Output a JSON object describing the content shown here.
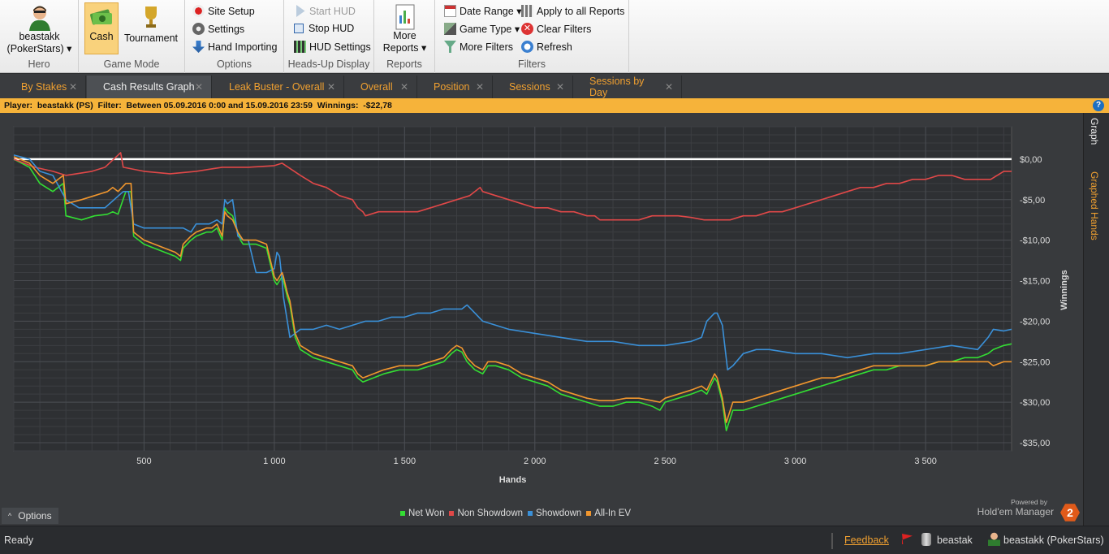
{
  "ribbon": {
    "hero": {
      "name": "beastakk",
      "site": "(PokerStars)",
      "label": "Hero"
    },
    "game_mode": {
      "cash": "Cash",
      "tournament": "Tournament",
      "label": "Game Mode"
    },
    "options": {
      "site_setup": "Site Setup",
      "settings": "Settings",
      "hand_importing": "Hand Importing",
      "label": "Options"
    },
    "hud": {
      "start": "Start HUD",
      "stop": "Stop HUD",
      "settings": "HUD Settings",
      "label": "Heads-Up Display"
    },
    "reports": {
      "more1": "More",
      "more2": "Reports",
      "label": "Reports"
    },
    "filters": {
      "date_range": "Date Range",
      "game_type": "Game Type",
      "more_filters": "More Filters",
      "apply_all": "Apply to all Reports",
      "clear": "Clear Filters",
      "refresh": "Refresh",
      "label": "Filters"
    }
  },
  "tabs": [
    {
      "label": "By Stakes"
    },
    {
      "label": "Cash Results Graph"
    },
    {
      "label": "Leak Buster - Overall"
    },
    {
      "label": "Overall"
    },
    {
      "label": "Position"
    },
    {
      "label": "Sessions"
    },
    {
      "label": "Sessions by Day"
    }
  ],
  "filterbar": {
    "text": "Player:  beastakk (PS)  Filter:  Between 05.09.2016 0:00 and 15.09.2016 23:59  Winnings:  -$22,78"
  },
  "side_tabs": {
    "graph": "Graph",
    "graphed_hands": "Graphed Hands"
  },
  "chart_data": {
    "type": "line",
    "xlabel": "Hands",
    "ylabel": "Winnings",
    "xlim": [
      0,
      3830
    ],
    "ylim": [
      -36,
      4
    ],
    "x_ticks": [
      "500",
      "1 000",
      "1 500",
      "2 000",
      "2 500",
      "3 000",
      "3 500"
    ],
    "y_ticks": [
      "$0,00",
      "-$5,00",
      "-$10,00",
      "-$15,00",
      "-$20,00",
      "-$25,00",
      "-$30,00",
      "-$35,00"
    ],
    "series": [
      {
        "name": "Net Won",
        "color": "#33dd33",
        "x": [
          0,
          60,
          100,
          150,
          190,
          200,
          260,
          310,
          360,
          380,
          400,
          430,
          450,
          460,
          480,
          500,
          540,
          580,
          620,
          640,
          650,
          680,
          700,
          740,
          760,
          780,
          800,
          810,
          820,
          840,
          860,
          870,
          880,
          890,
          930,
          970,
          1000,
          1010,
          1020,
          1030,
          1035,
          1050,
          1060,
          1080,
          1100,
          1150,
          1200,
          1250,
          1300,
          1320,
          1340,
          1380,
          1420,
          1480,
          1550,
          1600,
          1650,
          1680,
          1700,
          1720,
          1740,
          1770,
          1800,
          1820,
          1850,
          1900,
          1950,
          2000,
          2050,
          2100,
          2150,
          2200,
          2250,
          2300,
          2350,
          2400,
          2450,
          2480,
          2500,
          2550,
          2600,
          2640,
          2660,
          2690,
          2700,
          2720,
          2735,
          2740,
          2760,
          2780,
          2800,
          2850,
          2900,
          2950,
          3000,
          3050,
          3100,
          3150,
          3200,
          3250,
          3300,
          3350,
          3400,
          3450,
          3500,
          3550,
          3600,
          3650,
          3700,
          3740,
          3760,
          3800,
          3830
        ],
        "y": [
          0,
          -1,
          -3,
          -4,
          -3,
          -7,
          -7.5,
          -7,
          -6.8,
          -6.5,
          -6.8,
          -4,
          -4,
          -9.5,
          -10,
          -10.5,
          -11,
          -11.5,
          -12,
          -12.5,
          -11,
          -10,
          -9.5,
          -9,
          -9,
          -8.5,
          -10,
          -6,
          -6.5,
          -7,
          -9,
          -10,
          -10.5,
          -10.5,
          -10.5,
          -11,
          -15,
          -15.5,
          -15,
          -14.5,
          -15,
          -17,
          -18,
          -22,
          -23.5,
          -24.5,
          -25,
          -25.5,
          -26,
          -27,
          -27.5,
          -27,
          -26.5,
          -26,
          -26,
          -25.5,
          -25,
          -24,
          -23.5,
          -23.8,
          -25,
          -26,
          -26.5,
          -25.5,
          -25.5,
          -26,
          -27,
          -27.5,
          -28,
          -29,
          -29.5,
          -30,
          -30.5,
          -30.5,
          -30,
          -30,
          -30.5,
          -31,
          -30,
          -29.5,
          -29,
          -28.5,
          -29,
          -27,
          -27.5,
          -30,
          -33.5,
          -33,
          -31,
          -31,
          -31,
          -30.5,
          -30,
          -29.5,
          -29,
          -28.5,
          -28,
          -27.5,
          -27,
          -26.5,
          -26,
          -26,
          -25.5,
          -25.5,
          -25.5,
          -25,
          -25,
          -24.5,
          -24.5,
          -24,
          -23.5,
          -23,
          -22.8
        ]
      },
      {
        "name": "Non Showdown",
        "color": "#e04848",
        "x": [
          0,
          80,
          150,
          200,
          300,
          350,
          400,
          410,
          420,
          500,
          600,
          700,
          800,
          900,
          1000,
          1030,
          1100,
          1150,
          1200,
          1250,
          1300,
          1320,
          1340,
          1350,
          1400,
          1450,
          1500,
          1550,
          1600,
          1650,
          1700,
          1750,
          1790,
          1800,
          1850,
          1900,
          1950,
          2000,
          2050,
          2100,
          2150,
          2200,
          2230,
          2250,
          2300,
          2350,
          2400,
          2450,
          2500,
          2550,
          2600,
          2650,
          2700,
          2750,
          2800,
          2850,
          2900,
          2950,
          3000,
          3050,
          3100,
          3150,
          3200,
          3250,
          3300,
          3350,
          3400,
          3450,
          3500,
          3550,
          3600,
          3650,
          3700,
          3750,
          3800,
          3830
        ],
        "y": [
          0,
          -1,
          -1.5,
          -2,
          -1.5,
          -1,
          0.5,
          0.8,
          -1,
          -1.5,
          -1.8,
          -1.5,
          -1,
          -1,
          -0.8,
          -0.5,
          -2,
          -3,
          -3.5,
          -4.5,
          -5,
          -6,
          -6.5,
          -7,
          -6.5,
          -6.5,
          -6.5,
          -6.5,
          -6,
          -5.5,
          -5,
          -4.5,
          -3.5,
          -4,
          -4.5,
          -5,
          -5.5,
          -6,
          -6,
          -6.5,
          -6.5,
          -7,
          -7,
          -7.5,
          -7.5,
          -7.5,
          -7.5,
          -7,
          -7,
          -7,
          -7.2,
          -7.5,
          -7.5,
          -7.5,
          -7,
          -7,
          -6.5,
          -6.5,
          -6,
          -5.5,
          -5,
          -4.5,
          -4,
          -3.5,
          -3.5,
          -3,
          -3,
          -2.5,
          -2.5,
          -2,
          -2,
          -2.5,
          -2.5,
          -2.5,
          -1.5,
          -1.5
        ]
      },
      {
        "name": "Showdown",
        "color": "#3a90d8",
        "x": [
          0,
          60,
          100,
          150,
          200,
          250,
          300,
          350,
          420,
          440,
          460,
          500,
          550,
          600,
          650,
          680,
          700,
          750,
          780,
          800,
          810,
          820,
          840,
          860,
          880,
          900,
          930,
          970,
          1000,
          1010,
          1020,
          1030,
          1035,
          1050,
          1060,
          1080,
          1100,
          1150,
          1200,
          1250,
          1300,
          1350,
          1400,
          1450,
          1500,
          1550,
          1600,
          1650,
          1680,
          1700,
          1720,
          1740,
          1770,
          1800,
          1850,
          1900,
          2000,
          2100,
          2200,
          2300,
          2400,
          2500,
          2600,
          2640,
          2660,
          2690,
          2700,
          2720,
          2740,
          2760,
          2800,
          2850,
          2900,
          3000,
          3100,
          3200,
          3300,
          3400,
          3500,
          3600,
          3700,
          3740,
          3760,
          3800,
          3830
        ],
        "y": [
          0.5,
          0,
          -1.5,
          -2,
          -5,
          -6,
          -6,
          -6,
          -4,
          -4,
          -8,
          -8.5,
          -8.5,
          -8.5,
          -8.5,
          -9,
          -8,
          -8,
          -7.5,
          -8,
          -5,
          -5.5,
          -5,
          -9.5,
          -10,
          -10,
          -14,
          -14,
          -13.5,
          -11.5,
          -12,
          -15,
          -17,
          -20,
          -22,
          -21.5,
          -21,
          -21,
          -20.5,
          -21,
          -20.5,
          -20,
          -20,
          -19.5,
          -19.5,
          -19,
          -19,
          -18.5,
          -18.5,
          -18.5,
          -18.5,
          -18,
          -19,
          -20,
          -20.5,
          -21,
          -21.5,
          -22,
          -22.5,
          -22.5,
          -23,
          -23,
          -22.5,
          -22,
          -20,
          -19,
          -19,
          -20.5,
          -26,
          -25.5,
          -24,
          -23.5,
          -23.5,
          -24,
          -24,
          -24.5,
          -24,
          -24,
          -23.5,
          -23,
          -23.5,
          -22,
          -21,
          -21.2,
          -21
        ]
      },
      {
        "name": "All-In EV",
        "color": "#f0962e",
        "x": [
          0,
          60,
          100,
          150,
          190,
          200,
          260,
          310,
          360,
          380,
          400,
          430,
          450,
          460,
          480,
          500,
          540,
          580,
          620,
          640,
          650,
          680,
          700,
          740,
          760,
          780,
          800,
          810,
          820,
          840,
          860,
          870,
          880,
          890,
          930,
          970,
          1000,
          1010,
          1020,
          1030,
          1035,
          1050,
          1060,
          1080,
          1100,
          1150,
          1200,
          1250,
          1300,
          1320,
          1340,
          1380,
          1420,
          1480,
          1550,
          1600,
          1650,
          1680,
          1700,
          1720,
          1740,
          1770,
          1800,
          1820,
          1850,
          1900,
          1950,
          2000,
          2050,
          2100,
          2150,
          2200,
          2250,
          2300,
          2350,
          2400,
          2450,
          2480,
          2500,
          2550,
          2600,
          2640,
          2660,
          2690,
          2700,
          2720,
          2735,
          2740,
          2760,
          2780,
          2800,
          2850,
          2900,
          2950,
          3000,
          3050,
          3100,
          3150,
          3200,
          3250,
          3300,
          3350,
          3400,
          3450,
          3500,
          3550,
          3600,
          3650,
          3700,
          3740,
          3760,
          3800,
          3830
        ],
        "y": [
          0.3,
          -0.5,
          -2,
          -3,
          -2,
          -5.5,
          -5,
          -4.5,
          -4,
          -3.5,
          -4,
          -3,
          -3,
          -9,
          -9.5,
          -10,
          -10.5,
          -11,
          -11.5,
          -12,
          -10.5,
          -9.5,
          -9,
          -8.5,
          -8.5,
          -8,
          -9.5,
          -6.5,
          -7,
          -7.5,
          -9,
          -9.5,
          -10,
          -10,
          -10,
          -10.5,
          -14.5,
          -15,
          -14.5,
          -14,
          -14.5,
          -16.5,
          -17.5,
          -21.5,
          -23,
          -24,
          -24.5,
          -25,
          -25.5,
          -26.5,
          -27,
          -26.5,
          -26,
          -25.5,
          -25.5,
          -25,
          -24.5,
          -23.5,
          -23,
          -23.3,
          -24.5,
          -25.5,
          -26,
          -25,
          -25,
          -25.5,
          -26.5,
          -27,
          -27.5,
          -28.5,
          -29,
          -29.5,
          -29.8,
          -29.8,
          -29.5,
          -29.5,
          -29.8,
          -30,
          -29.5,
          -29,
          -28.5,
          -28,
          -28.5,
          -26.5,
          -27,
          -29.5,
          -32.5,
          -32,
          -30,
          -30,
          -30,
          -29.5,
          -29,
          -28.5,
          -28,
          -27.5,
          -27,
          -27,
          -26.5,
          -26,
          -25.5,
          -25.5,
          -25.5,
          -25.5,
          -25.5,
          -25,
          -25,
          -25,
          -25,
          -25,
          -25.5,
          -25,
          -25
        ]
      }
    ]
  },
  "options_label": "Options",
  "logo": {
    "powered": "Powered by",
    "name": "Hold'em Manager",
    "version": "2"
  },
  "status": {
    "text": "Ready",
    "feedback": "Feedback",
    "user": "beastak",
    "player": "beastakk (PokerStars)"
  }
}
